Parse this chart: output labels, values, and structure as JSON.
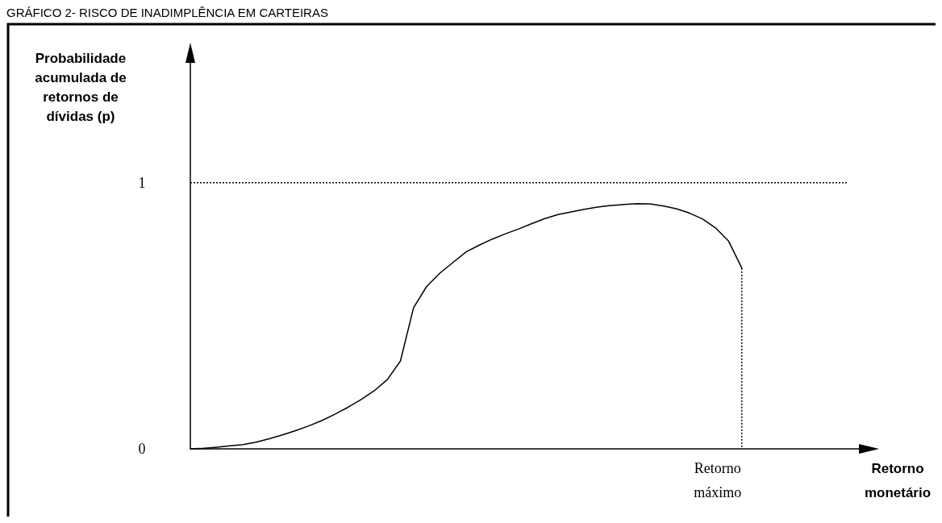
{
  "chart_data": {
    "type": "line",
    "title": "GRÁFICO 2- RISCO DE INADIMPLÊNCIA EM CARTEIRAS",
    "ylabel": "Probabilidade acumulada de retornos de dívidas (p)",
    "xlabel": "Retorno monetário",
    "ylim": [
      0,
      1.45
    ],
    "yticks": [
      0,
      1
    ],
    "grid": false,
    "marker": "none",
    "categories": [
      null,
      null,
      null,
      null,
      null,
      null,
      null,
      null,
      null,
      null,
      null,
      null,
      null,
      null,
      null,
      null,
      null,
      null,
      null,
      null,
      null,
      null,
      null,
      null,
      null,
      null,
      null,
      null,
      null,
      null,
      null,
      null,
      null,
      null,
      null,
      null,
      null,
      null,
      null,
      null,
      null,
      null,
      null,
      null,
      null,
      null,
      null,
      null,
      null,
      null,
      null
    ],
    "annotations": [
      "Retorno máximo"
    ],
    "ref_lines": [
      {
        "axis": "y",
        "value": 1,
        "color": "#000000",
        "line_style": "dotted"
      }
    ],
    "series": [
      {
        "color": "#000000",
        "line_style": "solid",
        "values": [
          0,
          0.002,
          0.006,
          0.011,
          0.016,
          0.025,
          0.038,
          0.052,
          0.068,
          0.086,
          0.106,
          0.13,
          0.156,
          0.185,
          0.218,
          0.26,
          0.33,
          0.53,
          0.61,
          0.66,
          0.7,
          0.74,
          0.765,
          0.788,
          0.808,
          0.826,
          0.846,
          0.865,
          0.88,
          0.89,
          0.9,
          0.908,
          0.914,
          0.918,
          0.921,
          0.92,
          0.913,
          0.902,
          0.886,
          0.864,
          0.83,
          0.78,
          0.679,
          null,
          null,
          null,
          null,
          null,
          null,
          null,
          null
        ]
      }
    ]
  }
}
